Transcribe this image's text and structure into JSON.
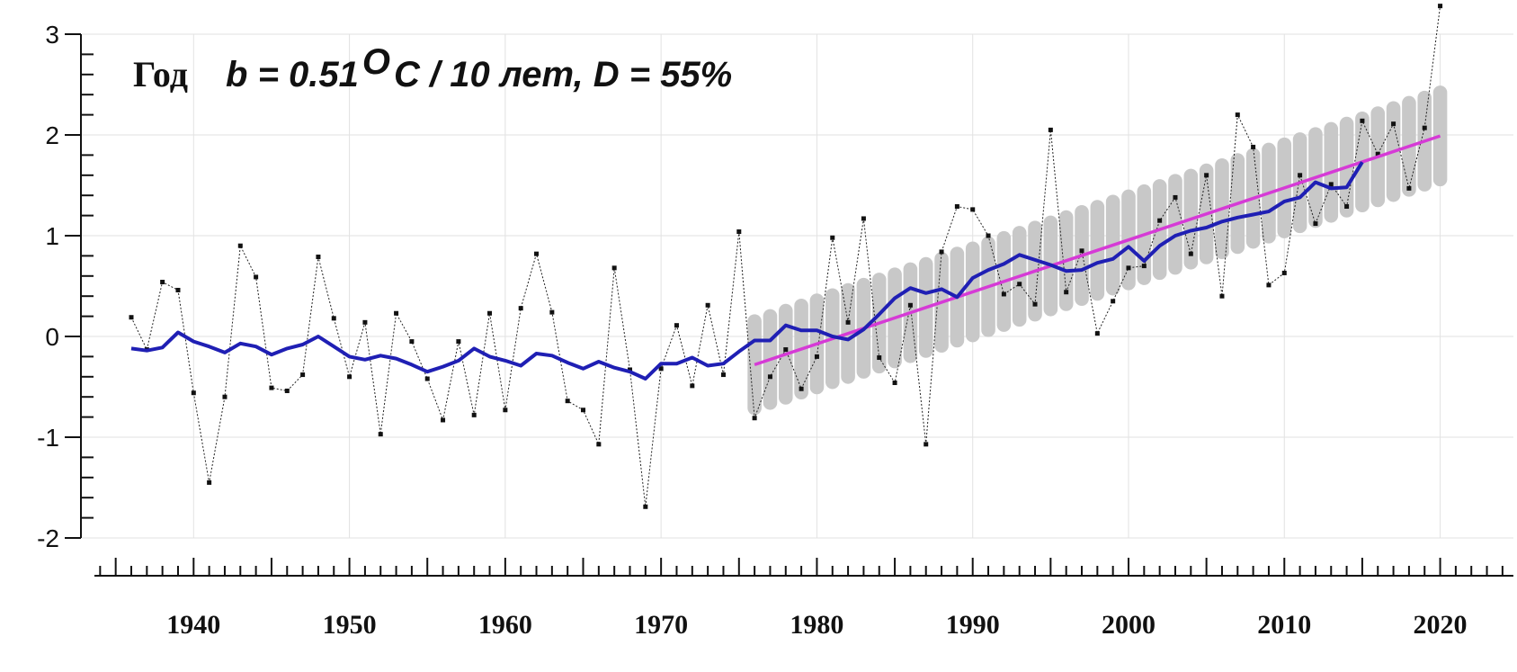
{
  "chart_data": {
    "type": "line",
    "title": {
      "period": "Год",
      "stats": "b = 0.51",
      "degree_symbol": "O",
      "stats_units": "C / 10 лет, D = 55%"
    },
    "xlabel": "",
    "ylabel": "",
    "xlim": [
      1934.5,
      2024.7
    ],
    "ylim": [
      -2,
      3
    ],
    "x_ticks": [
      1940,
      1950,
      1960,
      1970,
      1980,
      1990,
      2000,
      2010,
      2020
    ],
    "y_ticks": [
      -2,
      -1,
      0,
      1,
      2,
      3
    ],
    "grid": true,
    "series": [
      {
        "role": "annual anomaly",
        "style": "thin dotted black line with square markers",
        "color": "#222222",
        "x": [
          1936,
          1937,
          1938,
          1939,
          1940,
          1941,
          1942,
          1943,
          1944,
          1945,
          1946,
          1947,
          1948,
          1949,
          1950,
          1951,
          1952,
          1953,
          1954,
          1955,
          1956,
          1957,
          1958,
          1959,
          1960,
          1961,
          1962,
          1963,
          1964,
          1965,
          1966,
          1967,
          1968,
          1969,
          1970,
          1971,
          1972,
          1973,
          1974,
          1975,
          1976,
          1977,
          1978,
          1979,
          1980,
          1981,
          1982,
          1983,
          1984,
          1985,
          1986,
          1987,
          1988,
          1989,
          1990,
          1991,
          1992,
          1993,
          1994,
          1995,
          1996,
          1997,
          1998,
          1999,
          2000,
          2001,
          2002,
          2003,
          2004,
          2005,
          2006,
          2007,
          2008,
          2009,
          2010,
          2011,
          2012,
          2013,
          2014,
          2015,
          2016,
          2017,
          2018,
          2019,
          2020
        ],
        "values": [
          0.19,
          -0.13,
          0.54,
          0.46,
          -0.56,
          -1.45,
          -0.6,
          0.9,
          0.59,
          -0.51,
          -0.54,
          -0.38,
          0.79,
          0.18,
          -0.4,
          0.14,
          -0.97,
          0.23,
          -0.05,
          -0.42,
          -0.83,
          -0.05,
          -0.78,
          0.23,
          -0.73,
          0.28,
          0.82,
          0.24,
          -0.64,
          -0.73,
          -1.07,
          0.68,
          -0.33,
          -1.69,
          -0.32,
          0.11,
          -0.49,
          0.31,
          -0.38,
          1.04,
          -0.81,
          -0.4,
          -0.13,
          -0.52,
          -0.2,
          0.98,
          0.14,
          1.17,
          -0.21,
          -0.46,
          0.31,
          -1.07,
          0.84,
          1.29,
          1.26,
          1.0,
          0.42,
          0.52,
          0.32,
          2.05,
          0.44,
          0.85,
          0.03,
          0.35,
          0.68,
          0.7,
          1.15,
          1.38,
          0.82,
          1.6,
          0.4,
          2.2,
          1.88,
          0.51,
          0.63,
          1.6,
          1.12,
          1.51,
          1.29,
          2.14,
          1.81,
          2.11,
          1.47,
          2.07,
          3.28
        ]
      },
      {
        "role": "moving average",
        "style": "thick blue line",
        "color": "#1f1fb4",
        "x": [
          1936,
          1937,
          1938,
          1939,
          1940,
          1941,
          1942,
          1943,
          1944,
          1945,
          1946,
          1947,
          1948,
          1949,
          1950,
          1951,
          1952,
          1953,
          1954,
          1955,
          1956,
          1957,
          1958,
          1959,
          1960,
          1961,
          1962,
          1963,
          1964,
          1965,
          1966,
          1967,
          1968,
          1969,
          1970,
          1971,
          1972,
          1973,
          1974,
          1975,
          1976,
          1977,
          1978,
          1979,
          1980,
          1981,
          1982,
          1983,
          1984,
          1985,
          1986,
          1987,
          1988,
          1989,
          1990,
          1991,
          1992,
          1993,
          1994,
          1995,
          1996,
          1997,
          1998,
          1999,
          2000,
          2001,
          2002,
          2003,
          2004,
          2005,
          2006,
          2007,
          2008,
          2009,
          2010,
          2011,
          2012,
          2013,
          2014,
          2015
        ],
        "values": [
          -0.12,
          -0.14,
          -0.11,
          0.04,
          -0.05,
          -0.1,
          -0.16,
          -0.07,
          -0.1,
          -0.18,
          -0.12,
          -0.08,
          0.0,
          -0.1,
          -0.2,
          -0.23,
          -0.19,
          -0.22,
          -0.28,
          -0.35,
          -0.3,
          -0.24,
          -0.12,
          -0.2,
          -0.24,
          -0.29,
          -0.17,
          -0.19,
          -0.26,
          -0.32,
          -0.25,
          -0.31,
          -0.35,
          -0.42,
          -0.27,
          -0.27,
          -0.21,
          -0.29,
          -0.27,
          -0.15,
          -0.04,
          -0.04,
          0.11,
          0.06,
          0.06,
          0.0,
          -0.03,
          0.07,
          0.22,
          0.38,
          0.48,
          0.43,
          0.47,
          0.39,
          0.58,
          0.66,
          0.72,
          0.81,
          0.76,
          0.71,
          0.65,
          0.66,
          0.73,
          0.77,
          0.89,
          0.75,
          0.9,
          1.0,
          1.05,
          1.08,
          1.14,
          1.18,
          1.21,
          1.24,
          1.34,
          1.38,
          1.53,
          1.47,
          1.48,
          1.73
        ]
      },
      {
        "role": "linear trend",
        "style": "magenta line",
        "color": "#d63ad6",
        "x": [
          1976,
          2020
        ],
        "values": [
          -0.28,
          1.99
        ]
      }
    ],
    "confidence_band": {
      "color": "#c8c8c8",
      "x_range": [
        1976,
        2020
      ],
      "half_width": 0.5
    }
  }
}
